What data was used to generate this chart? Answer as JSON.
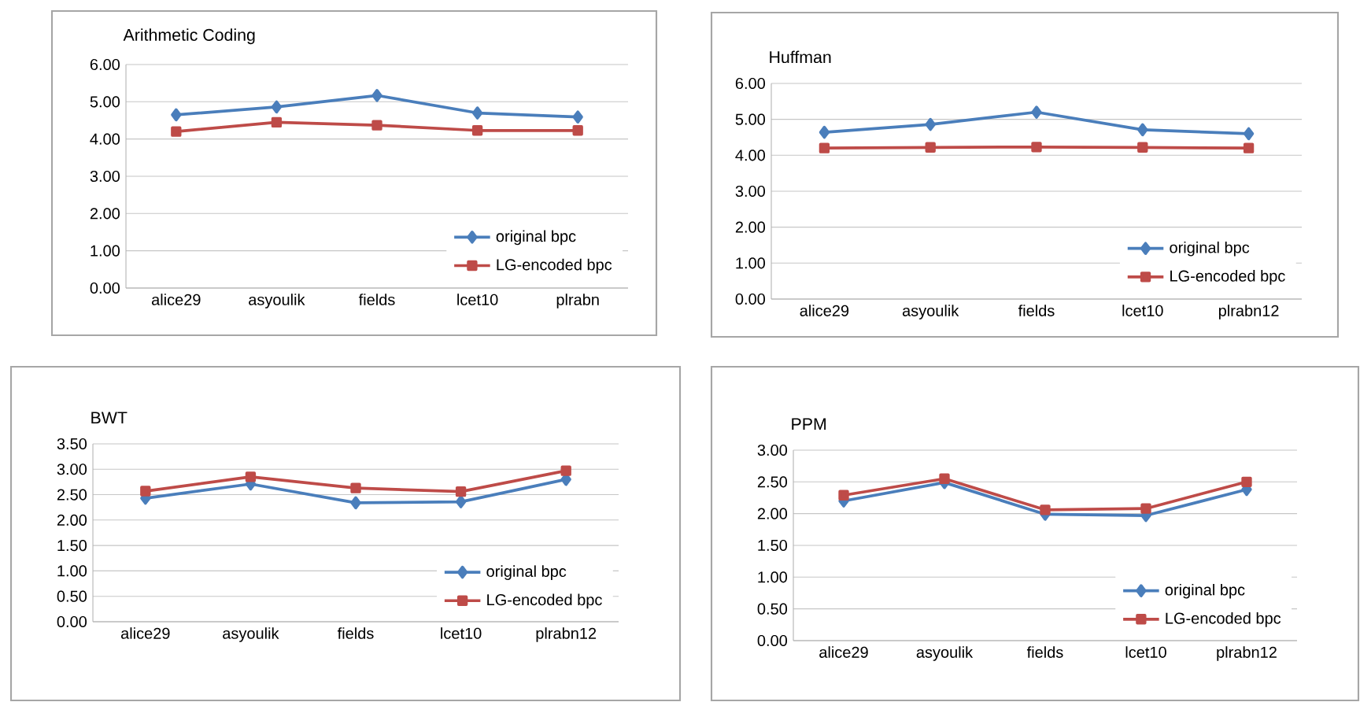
{
  "chart_data": [
    {
      "type": "line",
      "title": "Arithmetic Coding",
      "categories": [
        "alice29",
        "asyoulik",
        "fields",
        "lcet10",
        "plrabn"
      ],
      "series": [
        {
          "name": "original bpc",
          "color": "#4a7ebb",
          "marker": "diamond",
          "values": [
            4.65,
            4.86,
            5.17,
            4.7,
            4.59
          ]
        },
        {
          "name": "LG-encoded bpc",
          "color": "#be4b48",
          "marker": "square",
          "values": [
            4.2,
            4.45,
            4.37,
            4.23,
            4.23
          ]
        }
      ],
      "ylim": [
        0,
        6
      ],
      "yticks": [
        {
          "value": 0,
          "label": "0.00"
        },
        {
          "value": 1,
          "label": "1.00"
        },
        {
          "value": 2,
          "label": "2.00"
        },
        {
          "value": 3,
          "label": "3.00"
        },
        {
          "value": 4,
          "label": "4.00"
        },
        {
          "value": 5,
          "label": "5.00"
        },
        {
          "value": 6,
          "label": "6.00"
        }
      ],
      "grid": "y",
      "legend": "bottom right",
      "line_style": "solid"
    },
    {
      "type": "line",
      "title": "Huffman",
      "categories": [
        "alice29",
        "asyoulik",
        "fields",
        "lcet10",
        "plrabn12"
      ],
      "series": [
        {
          "name": "original bpc",
          "color": "#4a7ebb",
          "marker": "diamond",
          "values": [
            4.64,
            4.86,
            5.2,
            4.71,
            4.6
          ]
        },
        {
          "name": "LG-encoded bpc",
          "color": "#be4b48",
          "marker": "square",
          "values": [
            4.2,
            4.22,
            4.23,
            4.22,
            4.2
          ]
        }
      ],
      "ylim": [
        0,
        6
      ],
      "yticks": [
        {
          "value": 0,
          "label": "0.00"
        },
        {
          "value": 1,
          "label": "1.00"
        },
        {
          "value": 2,
          "label": "2.00"
        },
        {
          "value": 3,
          "label": "3.00"
        },
        {
          "value": 4,
          "label": "4.00"
        },
        {
          "value": 5,
          "label": "5.00"
        },
        {
          "value": 6,
          "label": "6.00"
        }
      ],
      "grid": "y",
      "legend": "bottom right",
      "line_style": "solid"
    },
    {
      "type": "line",
      "title": "BWT",
      "categories": [
        "alice29",
        "asyoulik",
        "fields",
        "lcet10",
        "plrabn12"
      ],
      "series": [
        {
          "name": "original bpc",
          "color": "#4a7ebb",
          "marker": "diamond",
          "values": [
            2.43,
            2.71,
            2.34,
            2.36,
            2.8
          ]
        },
        {
          "name": "LG-encoded bpc",
          "color": "#be4b48",
          "marker": "square",
          "values": [
            2.57,
            2.85,
            2.63,
            2.56,
            2.97
          ]
        }
      ],
      "ylim": [
        0,
        3.5
      ],
      "yticks": [
        {
          "value": 0,
          "label": "0.00"
        },
        {
          "value": 0.5,
          "label": "0.50"
        },
        {
          "value": 1,
          "label": "1.00"
        },
        {
          "value": 1.5,
          "label": "1.50"
        },
        {
          "value": 2,
          "label": "2.00"
        },
        {
          "value": 2.5,
          "label": "2.50"
        },
        {
          "value": 3,
          "label": "3.00"
        },
        {
          "value": 3.5,
          "label": "3.50"
        }
      ],
      "grid": "y",
      "legend": "bottom right",
      "line_style": "solid"
    },
    {
      "type": "line",
      "title": "PPM",
      "categories": [
        "alice29",
        "asyoulik",
        "fields",
        "lcet10",
        "plrabn12"
      ],
      "series": [
        {
          "name": "original bpc",
          "color": "#4a7ebb",
          "marker": "diamond",
          "values": [
            2.2,
            2.49,
            1.99,
            1.97,
            2.38
          ]
        },
        {
          "name": "LG-encoded bpc",
          "color": "#be4b48",
          "marker": "square",
          "values": [
            2.29,
            2.55,
            2.06,
            2.08,
            2.5
          ]
        }
      ],
      "ylim": [
        0,
        3
      ],
      "yticks": [
        {
          "value": 0,
          "label": "0.00"
        },
        {
          "value": 0.5,
          "label": "0.50"
        },
        {
          "value": 1,
          "label": "1.00"
        },
        {
          "value": 1.5,
          "label": "1.50"
        },
        {
          "value": 2,
          "label": "2.00"
        },
        {
          "value": 2.5,
          "label": "2.50"
        },
        {
          "value": 3,
          "label": "3.00"
        }
      ],
      "grid": "y",
      "legend": "bottom right",
      "line_style": "solid"
    }
  ]
}
